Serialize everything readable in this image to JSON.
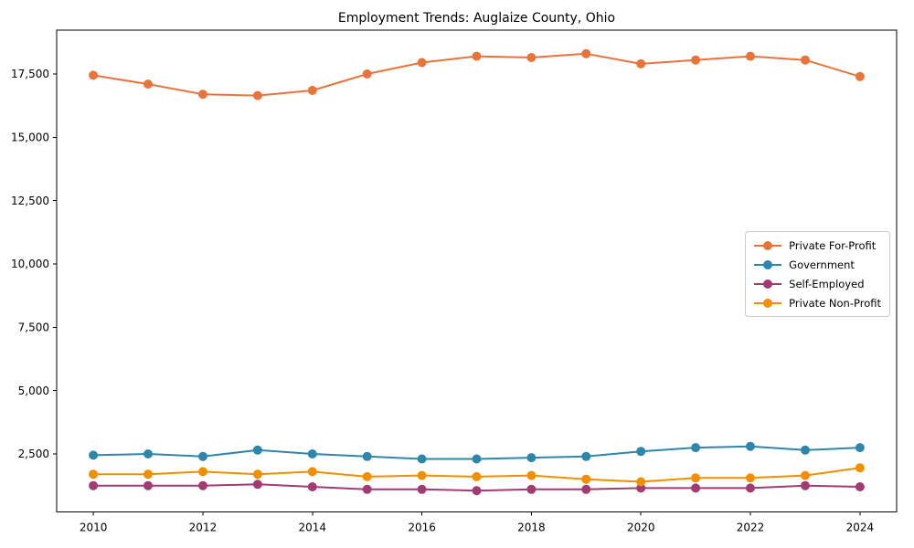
{
  "chart_data": {
    "type": "line",
    "title": "Employment Trends: Auglaize County, Ohio",
    "xlabel": "",
    "ylabel": "",
    "grid": false,
    "legend_position": "center right",
    "marker": "o",
    "axis_color": "#000000",
    "text_color": "#000000",
    "background_color": "#ffffff",
    "x": [
      2010,
      2011,
      2012,
      2013,
      2014,
      2015,
      2016,
      2017,
      2018,
      2019,
      2020,
      2021,
      2022,
      2023,
      2024
    ],
    "x_ticks": [
      2010,
      2012,
      2014,
      2016,
      2018,
      2020,
      2022,
      2024
    ],
    "x_tick_labels": [
      "2010",
      "2012",
      "2014",
      "2016",
      "2018",
      "2020",
      "2022",
      "2024"
    ],
    "y_ticks": [
      2500,
      5000,
      7500,
      10000,
      12500,
      15000,
      17500
    ],
    "y_tick_labels": [
      "2,500",
      "5,000",
      "7,500",
      "10,000",
      "12,500",
      "15,000",
      "17,500"
    ],
    "xlim": [
      2009.33,
      2024.67
    ],
    "ylim": [
      210,
      19230
    ],
    "series": [
      {
        "name": "Private For-Profit",
        "color": "#E8743B",
        "values": [
          17450,
          17100,
          16700,
          16650,
          16850,
          17500,
          17950,
          18200,
          18150,
          18300,
          17900,
          18050,
          18200,
          18050,
          17400
        ]
      },
      {
        "name": "Government",
        "color": "#2E86AB",
        "values": [
          2450,
          2500,
          2400,
          2650,
          2500,
          2400,
          2300,
          2300,
          2350,
          2400,
          2600,
          2750,
          2800,
          2650,
          2750
        ]
      },
      {
        "name": "Self-Employed",
        "color": "#A23B72",
        "values": [
          1250,
          1250,
          1250,
          1300,
          1200,
          1100,
          1100,
          1050,
          1100,
          1100,
          1150,
          1150,
          1150,
          1250,
          1200
        ]
      },
      {
        "name": "Private Non-Profit",
        "color": "#F18F01",
        "values": [
          1700,
          1700,
          1800,
          1700,
          1800,
          1600,
          1650,
          1600,
          1650,
          1500,
          1400,
          1550,
          1550,
          1650,
          1950
        ]
      }
    ]
  }
}
